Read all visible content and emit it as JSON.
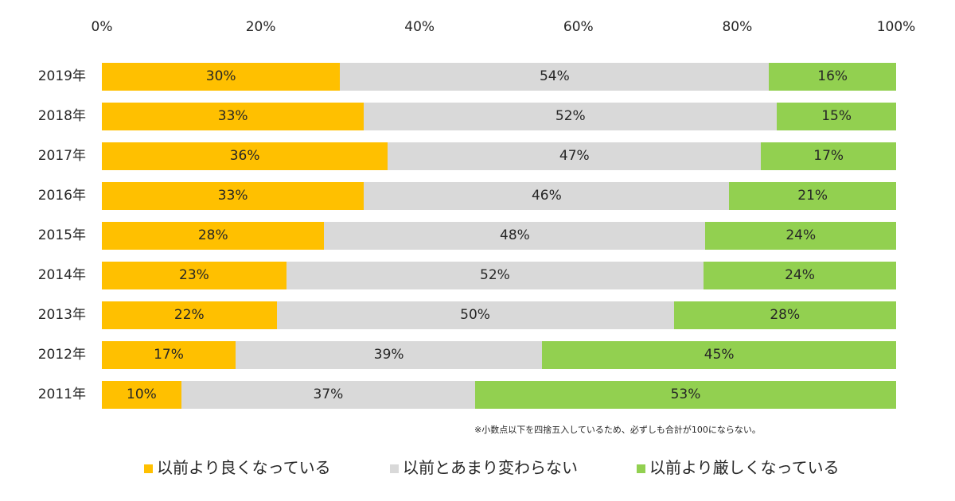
{
  "chart_data": {
    "type": "bar",
    "orientation": "horizontal",
    "stacked": true,
    "percent_stacked": true,
    "title": "",
    "xlabel": "",
    "ylabel": "",
    "xlim": [
      0,
      100
    ],
    "x_ticks": [
      "0%",
      "20%",
      "40%",
      "60%",
      "80%",
      "100%"
    ],
    "x_tick_values": [
      0,
      20,
      40,
      60,
      80,
      100
    ],
    "grid": false,
    "legend_position": "bottom",
    "categories": [
      "2019年",
      "2018年",
      "2017年",
      "2016年",
      "2015年",
      "2014年",
      "2013年",
      "2012年",
      "2011年"
    ],
    "series": [
      {
        "name": "以前より良くなっている",
        "color": "#ffc000",
        "values": [
          30,
          33,
          36,
          33,
          28,
          23,
          22,
          17,
          10
        ],
        "labels": [
          "30%",
          "33%",
          "36%",
          "33%",
          "28%",
          "23%",
          "22%",
          "17%",
          "10%"
        ]
      },
      {
        "name": "以前とあまり変わらない",
        "color": "#d9d9d9",
        "values": [
          54,
          52,
          47,
          46,
          48,
          52,
          50,
          39,
          37
        ],
        "labels": [
          "54%",
          "52%",
          "47%",
          "46%",
          "48%",
          "52%",
          "50%",
          "39%",
          "37%"
        ]
      },
      {
        "name": "以前より厳しくなっている",
        "color": "#92d050",
        "values": [
          16,
          15,
          17,
          21,
          24,
          24,
          28,
          45,
          53
        ],
        "labels": [
          "16%",
          "15%",
          "17%",
          "21%",
          "24%",
          "24%",
          "28%",
          "45%",
          "53%"
        ]
      }
    ],
    "annotations": [
      "※小数点以下を四捨五入しているため、必ずしも合計が100にならない。"
    ]
  }
}
